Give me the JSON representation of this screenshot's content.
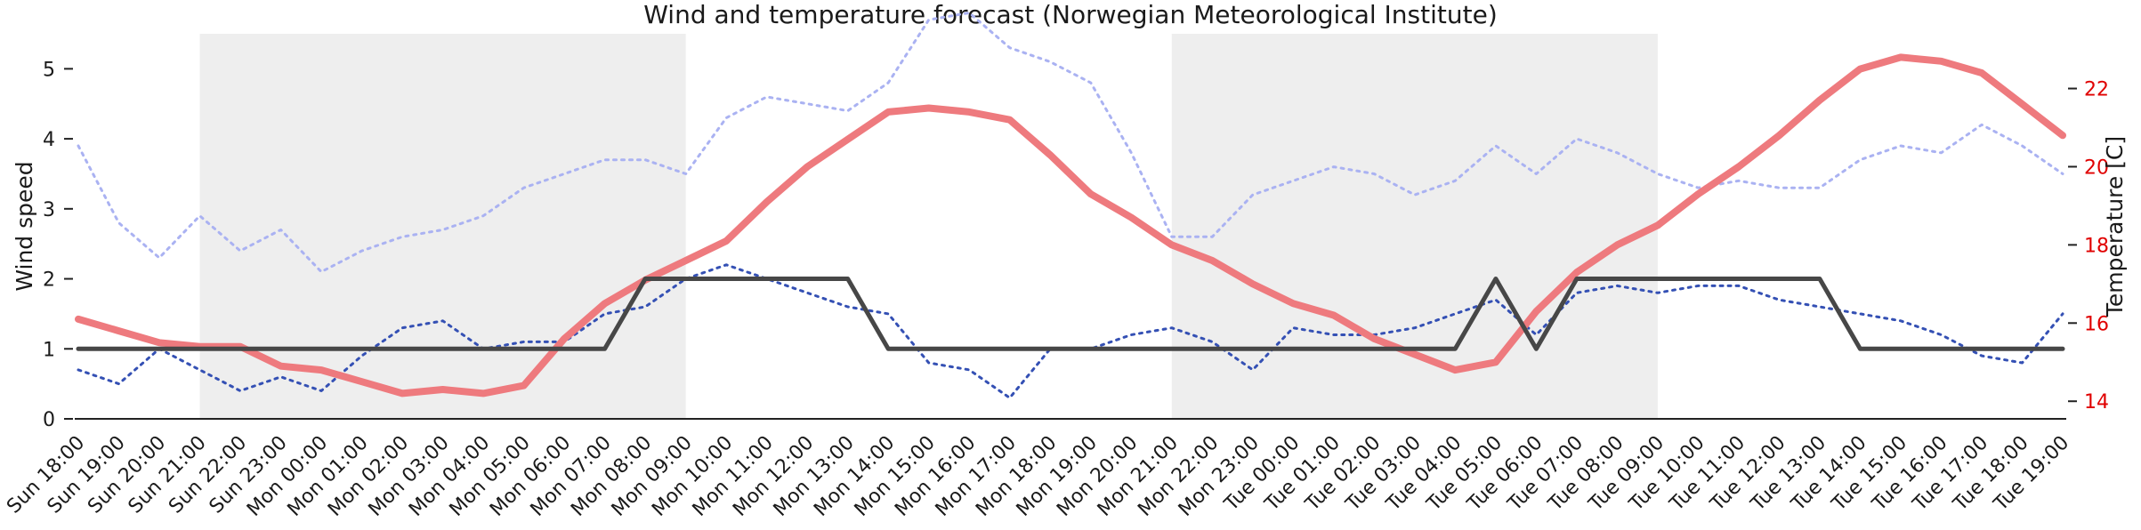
{
  "chart_data": {
    "type": "line",
    "title": "Wind and temperature forecast (Norwegian Meteorological Institute)",
    "ylabel_left": "Wind speed",
    "ylabel_right": "Temperature [C]",
    "y_left_range": [
      0,
      5.5
    ],
    "y_left_ticks": [
      "0",
      "1",
      "2",
      "3",
      "4",
      "5"
    ],
    "y_right_range": [
      13.55,
      23.4
    ],
    "y_right_ticks": [
      "14",
      "16",
      "18",
      "20",
      "22"
    ],
    "x_tick_labels": [
      "Sun 18:00",
      "Sun 19:00",
      "Sun 20:00",
      "Sun 21:00",
      "Sun 22:00",
      "Sun 23:00",
      "Mon 00:00",
      "Mon 01:00",
      "Mon 02:00",
      "Mon 03:00",
      "Mon 04:00",
      "Mon 05:00",
      "Mon 06:00",
      "Mon 07:00",
      "Mon 08:00",
      "Mon 09:00",
      "Mon 10:00",
      "Mon 11:00",
      "Mon 12:00",
      "Mon 13:00",
      "Mon 14:00",
      "Mon 15:00",
      "Mon 16:00",
      "Mon 17:00",
      "Mon 18:00",
      "Mon 19:00",
      "Mon 20:00",
      "Mon 21:00",
      "Mon 22:00",
      "Mon 23:00",
      "Tue 00:00",
      "Tue 01:00",
      "Tue 02:00",
      "Tue 03:00",
      "Tue 04:00",
      "Tue 05:00",
      "Tue 06:00",
      "Tue 07:00",
      "Tue 08:00",
      "Tue 09:00",
      "Tue 10:00",
      "Tue 11:00",
      "Tue 12:00",
      "Tue 13:00",
      "Tue 14:00",
      "Tue 15:00",
      "Tue 16:00",
      "Tue 17:00",
      "Tue 18:00",
      "Tue 19:00"
    ],
    "night_shading": [
      [
        "Sun 21:00",
        "Mon 09:00"
      ],
      [
        "Mon 21:00",
        "Tue 09:00"
      ]
    ],
    "colors": {
      "temperature": "#ee7a7e",
      "wind_force": "#474747",
      "wind_speed": "#3450b4",
      "wind_gust": "#aab2f2",
      "night_band": "#eeeeee",
      "right_ticks": "#e00000"
    },
    "series": [
      {
        "axis": "right",
        "values": [
          16.1,
          15.8,
          15.5,
          15.4,
          15.4,
          14.9,
          14.8,
          14.5,
          14.2,
          14.3,
          14.2,
          14.4,
          15.6,
          16.5,
          17.1,
          17.6,
          18.1,
          19.1,
          20.0,
          20.7,
          21.4,
          21.5,
          21.4,
          21.2,
          20.3,
          19.3,
          18.7,
          18.0,
          17.6,
          17.0,
          16.5,
          16.2,
          15.6,
          15.2,
          14.8,
          15.0,
          16.3,
          17.3,
          18.0,
          18.5,
          19.3,
          20.0,
          20.8,
          21.7,
          22.5,
          22.8,
          22.7,
          22.4,
          21.6,
          20.8
        ]
      },
      {
        "axis": "left",
        "values": [
          1,
          1,
          1,
          1,
          1,
          1,
          1,
          1,
          1,
          1,
          1,
          1,
          1,
          1,
          2,
          2,
          2,
          2,
          2,
          2,
          1,
          1,
          1,
          1,
          1,
          1,
          1,
          1,
          1,
          1,
          1,
          1,
          1,
          1,
          1,
          2,
          1,
          2,
          2,
          2,
          2,
          2,
          2,
          2,
          1,
          1,
          1,
          1,
          1,
          1
        ]
      },
      {
        "axis": "left",
        "values": [
          0.7,
          0.5,
          1.0,
          0.7,
          0.4,
          0.6,
          0.4,
          0.9,
          1.3,
          1.4,
          1.0,
          1.1,
          1.1,
          1.5,
          1.6,
          2.0,
          2.2,
          2.0,
          1.8,
          1.6,
          1.5,
          0.8,
          0.7,
          0.3,
          1.0,
          1.0,
          1.2,
          1.3,
          1.1,
          0.7,
          1.3,
          1.2,
          1.2,
          1.3,
          1.5,
          1.7,
          1.2,
          1.8,
          1.9,
          1.8,
          1.9,
          1.9,
          1.7,
          1.6,
          1.5,
          1.4,
          1.2,
          0.9,
          0.8,
          1.5
        ]
      },
      {
        "axis": "left",
        "values": [
          3.9,
          2.8,
          2.3,
          2.9,
          2.4,
          2.7,
          2.1,
          2.4,
          2.6,
          2.7,
          2.9,
          3.3,
          3.5,
          3.7,
          3.7,
          3.5,
          4.3,
          4.6,
          4.5,
          4.4,
          4.8,
          5.7,
          5.8,
          5.3,
          5.1,
          4.8,
          3.8,
          2.6,
          2.6,
          3.2,
          3.4,
          3.6,
          3.5,
          3.2,
          3.4,
          3.9,
          3.5,
          4.0,
          3.8,
          3.5,
          3.3,
          3.4,
          3.3,
          3.3,
          3.7,
          3.9,
          3.8,
          4.2,
          3.9,
          3.5
        ]
      }
    ]
  }
}
